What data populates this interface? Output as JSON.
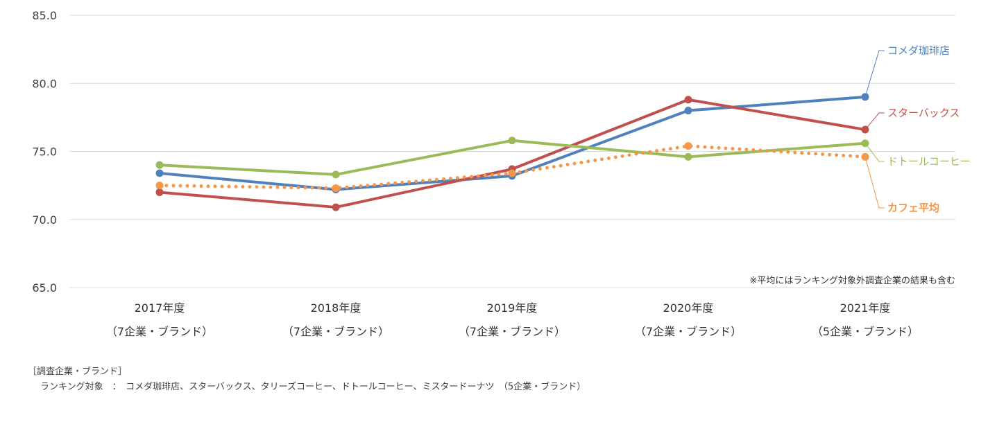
{
  "chart_data": {
    "type": "line",
    "categories": [
      {
        "year": "2017年度",
        "sub": "（7企業・ブランド）"
      },
      {
        "year": "2018年度",
        "sub": "（7企業・ブランド）"
      },
      {
        "year": "2019年度",
        "sub": "（7企業・ブランド）"
      },
      {
        "year": "2020年度",
        "sub": "（7企業・ブランド）"
      },
      {
        "year": "2021年度",
        "sub": "（5企業・ブランド）"
      }
    ],
    "ylim": [
      65.0,
      85.0
    ],
    "yticks": [
      "65.0",
      "70.0",
      "75.0",
      "80.0",
      "85.0"
    ],
    "grid": true,
    "series": [
      {
        "name": "コメダ珈琲店",
        "color": "#4f81bd",
        "dotted": false,
        "bold": false,
        "values": [
          73.4,
          72.2,
          73.2,
          78.0,
          79.0
        ]
      },
      {
        "name": "スターバックス",
        "color": "#c0504d",
        "dotted": false,
        "bold": false,
        "values": [
          72.0,
          70.9,
          73.7,
          78.8,
          76.6
        ]
      },
      {
        "name": "ドトールコーヒー",
        "color": "#9bbb59",
        "dotted": false,
        "bold": false,
        "values": [
          74.0,
          73.3,
          75.8,
          74.6,
          75.6
        ]
      },
      {
        "name": "カフェ平均",
        "color": "#f79646",
        "dotted": true,
        "bold": true,
        "values": [
          72.5,
          72.3,
          73.4,
          75.4,
          74.6
        ]
      }
    ],
    "note": "※平均にはランキング対象外調査企業の結果も含む"
  },
  "footer": {
    "heading": "［調査企業・ブランド］",
    "label": "ランキング対象　：",
    "text": "コメダ珈琲店、スターバックス、タリーズコーヒー、ドトールコーヒー、ミスタードーナツ　（5企業・ブランド）"
  }
}
